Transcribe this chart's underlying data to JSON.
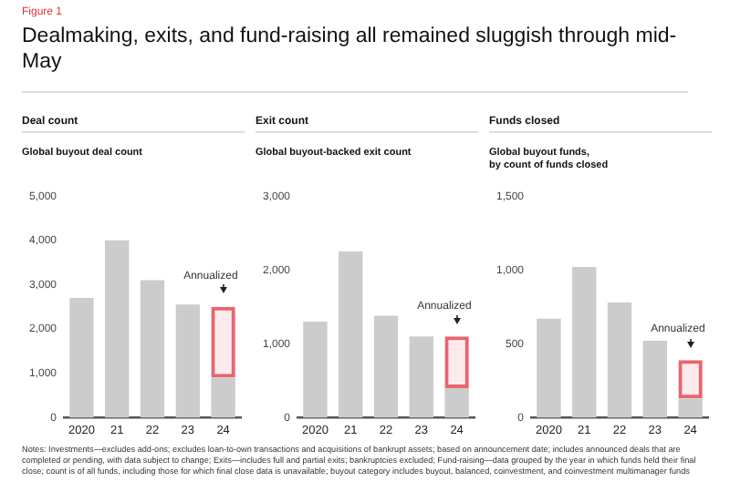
{
  "chart_data": [
    {
      "type": "other",
      "title": "Dealmaking, exits, and fund-raising all remained sluggish through mid-May",
      "annotations": [
        "Figure 1",
        "Notes: Investments—excludes add-ons; excludes loan-to-own transactions and acquisitions of bankrupt assets; based on announcement date; includes announced deals that are completed or pending, with data subject to change; Exits—includes full and partial exits; bankruptcies excluded; Fund-raising—data grouped by the year in which funds held their final close; count is of all funds, including those for which final close data is unavailable; buyout category includes buyout, balanced, coinvestment, and coinvestment multimanager funds"
      ]
    },
    {
      "type": "bar",
      "title": "Deal count",
      "subtitle": "Global buyout deal count",
      "categories": [
        "2020",
        "21",
        "22",
        "23",
        "24"
      ],
      "stacked": true,
      "series": [
        {
          "color": "#cccccc",
          "values": [
            2700,
            4000,
            3100,
            2550,
            900
          ]
        },
        {
          "color": "#e8656e",
          "line_style": "dashed",
          "values": [
            null,
            null,
            null,
            null,
            1600
          ]
        }
      ],
      "ylim": [
        0,
        5000
      ],
      "yticks": [
        {
          "value": 0,
          "label": "0"
        },
        {
          "value": 1000,
          "label": "1,000"
        },
        {
          "value": 2000,
          "label": "2,000"
        },
        {
          "value": 3000,
          "label": "3,000"
        },
        {
          "value": 4000,
          "label": "4,000"
        },
        {
          "value": 5000,
          "label": "5,000"
        }
      ],
      "grid": false,
      "legend": false,
      "annotations": [
        "Annualized"
      ]
    },
    {
      "type": "bar",
      "title": "Exit count",
      "subtitle": "Global buyout-backed exit count",
      "categories": [
        "2020",
        "21",
        "22",
        "23",
        "24"
      ],
      "stacked": true,
      "series": [
        {
          "color": "#cccccc",
          "values": [
            1300,
            2250,
            1380,
            1100,
            400
          ]
        },
        {
          "color": "#e8656e",
          "line_style": "dashed",
          "values": [
            null,
            null,
            null,
            null,
            700
          ]
        }
      ],
      "ylim": [
        0,
        3000
      ],
      "yticks": [
        {
          "value": 0,
          "label": "0"
        },
        {
          "value": 1000,
          "label": "1,000"
        },
        {
          "value": 2000,
          "label": "2,000"
        },
        {
          "value": 3000,
          "label": "3,000"
        }
      ],
      "grid": false,
      "legend": false,
      "annotations": [
        "Annualized"
      ]
    },
    {
      "type": "bar",
      "title": "Funds closed",
      "subtitle": "Global buyout funds,\nby count of funds closed",
      "categories": [
        "2020",
        "21",
        "22",
        "23",
        "24"
      ],
      "stacked": true,
      "series": [
        {
          "color": "#cccccc",
          "values": [
            670,
            1020,
            780,
            520,
            130
          ]
        },
        {
          "color": "#e8656e",
          "line_style": "dashed",
          "values": [
            null,
            null,
            null,
            null,
            260
          ]
        }
      ],
      "ylim": [
        0,
        1500
      ],
      "yticks": [
        {
          "value": 0,
          "label": "0"
        },
        {
          "value": 500,
          "label": "500"
        },
        {
          "value": 1000,
          "label": "1,000"
        },
        {
          "value": 1500,
          "label": "1,500"
        }
      ],
      "grid": false,
      "legend": false,
      "annotations": [
        "Annualized"
      ]
    }
  ]
}
